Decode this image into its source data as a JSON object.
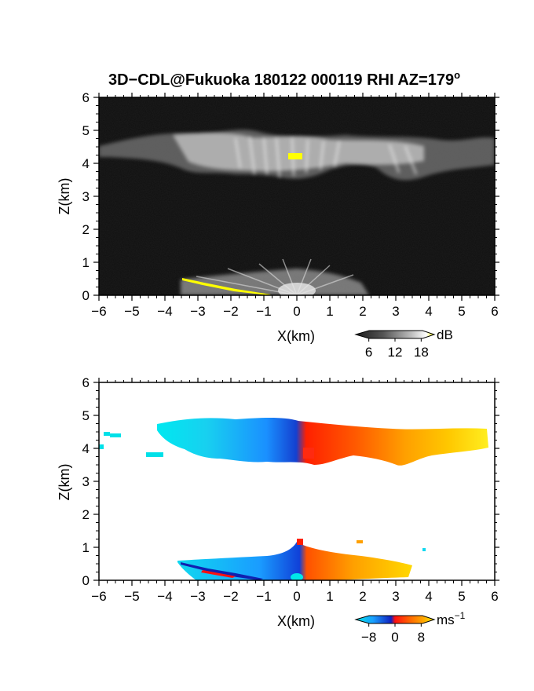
{
  "figure": {
    "title": "3D−CDL@Fukuoka 180122 000119 RHI AZ=179",
    "title_superscript": "o"
  },
  "chart_data": [
    {
      "type": "heatmap",
      "name": "reflectivity-panel",
      "xlabel": "X(km)",
      "ylabel": "Z(km)",
      "xlim": [
        -6,
        6
      ],
      "ylim": [
        0,
        6
      ],
      "xticks": [
        "−6",
        "−5",
        "−4",
        "−3",
        "−2",
        "−1",
        "0",
        "1",
        "2",
        "3",
        "4",
        "5",
        "6"
      ],
      "yticks": [
        "0",
        "1",
        "2",
        "3",
        "4",
        "5",
        "6"
      ],
      "colorbar": {
        "ticks": [
          "6",
          "12",
          "18"
        ],
        "tick_values": [
          6,
          12,
          18
        ],
        "range": [
          3,
          21
        ],
        "unit": "dB"
      },
      "features": [
        {
          "x": [
            -6,
            6
          ],
          "z": [
            3.5,
            5.0
          ],
          "level_db": 13
        },
        {
          "x": [
            -4,
            3
          ],
          "z": [
            0,
            0.7
          ],
          "level_db": 10
        }
      ]
    },
    {
      "type": "heatmap",
      "name": "doppler-velocity-panel",
      "xlabel": "X(km)",
      "ylabel": "Z(km)",
      "xlim": [
        -6,
        6
      ],
      "ylim": [
        0,
        6
      ],
      "xticks": [
        "−6",
        "−5",
        "−4",
        "−3",
        "−2",
        "−1",
        "0",
        "1",
        "2",
        "3",
        "4",
        "5",
        "6"
      ],
      "yticks": [
        "0",
        "1",
        "2",
        "3",
        "4",
        "5",
        "6"
      ],
      "colorbar": {
        "ticks": [
          "−8",
          "0",
          "8"
        ],
        "tick_values": [
          -8,
          0,
          8
        ],
        "range": [
          -12,
          12
        ],
        "unit": "ms",
        "unit_superscript": "−1"
      },
      "features": [
        {
          "x": [
            -4,
            0
          ],
          "z": [
            3.5,
            5.0
          ],
          "velocity_ms": -8
        },
        {
          "x": [
            0,
            6
          ],
          "z": [
            3.5,
            5.0
          ],
          "velocity_ms": 8
        },
        {
          "x": [
            -4,
            0
          ],
          "z": [
            0,
            0.6
          ],
          "velocity_ms": -8
        },
        {
          "x": [
            0,
            3.5
          ],
          "z": [
            0,
            0.8
          ],
          "velocity_ms": 8
        }
      ]
    }
  ]
}
